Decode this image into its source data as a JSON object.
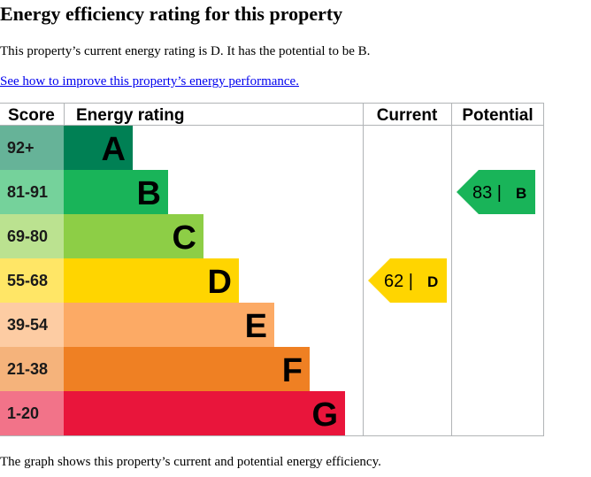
{
  "page": {
    "title": "Energy efficiency rating for this property",
    "summary": "This property’s current energy rating is D. It has the potential to be B.",
    "link_text": "See how to improve this property’s energy performance.",
    "footer": "The graph shows this property’s current and potential energy efficiency."
  },
  "colors": {
    "link": "#0000ee",
    "grid": "#b1b4b6"
  },
  "chart_data": {
    "type": "table",
    "columns": {
      "score": "Score",
      "rating": "Energy rating",
      "current": "Current",
      "potential": "Potential"
    },
    "bands": [
      {
        "letter": "A",
        "range": "92+",
        "color": "#008054",
        "light": "#66b398"
      },
      {
        "letter": "B",
        "range": "81-91",
        "color": "#19b459",
        "light": "#75d29b"
      },
      {
        "letter": "C",
        "range": "69-80",
        "color": "#8dce46",
        "light": "#bbe290"
      },
      {
        "letter": "D",
        "range": "55-68",
        "color": "#ffd500",
        "light": "#ffe666"
      },
      {
        "letter": "E",
        "range": "39-54",
        "color": "#fcaa65",
        "light": "#fdcca3"
      },
      {
        "letter": "F",
        "range": "21-38",
        "color": "#ef8023",
        "light": "#f5b37b"
      },
      {
        "letter": "G",
        "range": "1-20",
        "color": "#e9153b",
        "light": "#f27389"
      }
    ],
    "current": {
      "score": 62,
      "letter": "D"
    },
    "potential": {
      "score": 83,
      "letter": "B"
    }
  }
}
